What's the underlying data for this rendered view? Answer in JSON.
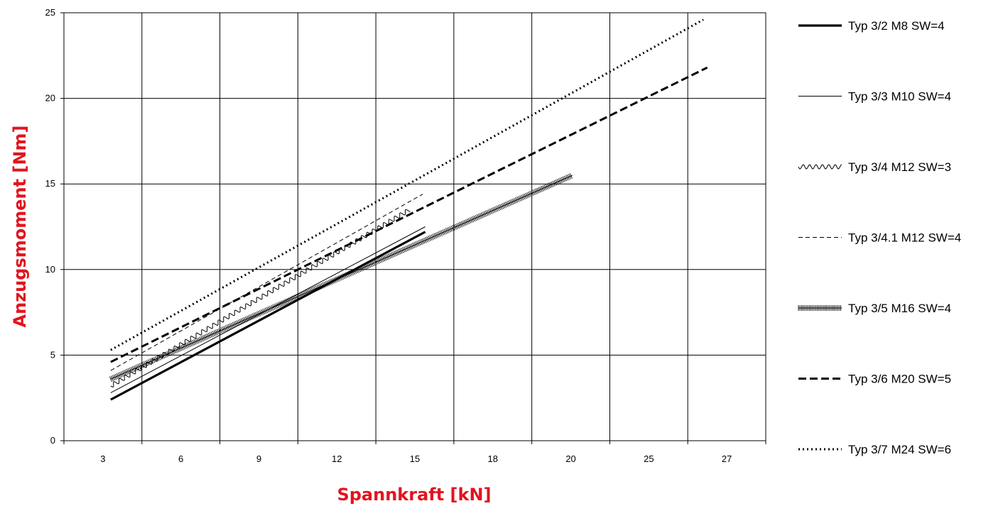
{
  "chart_data": {
    "type": "line",
    "title": "",
    "xlabel": "Spannkraft [kN]",
    "ylabel": "Anzugsmoment [Nm]",
    "x_categories": [
      "3",
      "6",
      "9",
      "12",
      "15",
      "18",
      "20",
      "25",
      "27"
    ],
    "y_ticks": [
      "0",
      "5",
      "10",
      "15",
      "20",
      "25"
    ],
    "ylim": [
      0,
      25
    ],
    "grid": true,
    "legend_position": "right",
    "series": [
      {
        "name": "Typ 3/2 M8 SW=4",
        "style": "solid-thick",
        "x": [
          3.3,
          15.4
        ],
        "y": [
          2.4,
          12.2
        ]
      },
      {
        "name": "Typ 3/3 M10 SW=4",
        "style": "solid-thin",
        "x": [
          3.3,
          15.4
        ],
        "y": [
          2.8,
          12.5
        ]
      },
      {
        "name": "Typ 3/4 M12 SW=3",
        "style": "wavy",
        "x": [
          3.3,
          14.8
        ],
        "y": [
          3.2,
          13.5
        ]
      },
      {
        "name": "Typ 3/4.1 M12 SW=4",
        "style": "dashed-thin",
        "x": [
          3.3,
          15.3
        ],
        "y": [
          4.1,
          14.4
        ]
      },
      {
        "name": "Typ 3/5 M16 SW=4",
        "style": "hatched",
        "x": [
          3.3,
          20.1
        ],
        "y": [
          3.6,
          15.5
        ]
      },
      {
        "name": "Typ 3/6 M20 SW=5",
        "style": "dashed-thick",
        "x": [
          3.3,
          26.5
        ],
        "y": [
          4.6,
          21.8
        ]
      },
      {
        "name": "Typ 3/7 M24 SW=6",
        "style": "dotted",
        "x": [
          3.3,
          26.4
        ],
        "y": [
          5.3,
          24.6
        ]
      }
    ]
  }
}
